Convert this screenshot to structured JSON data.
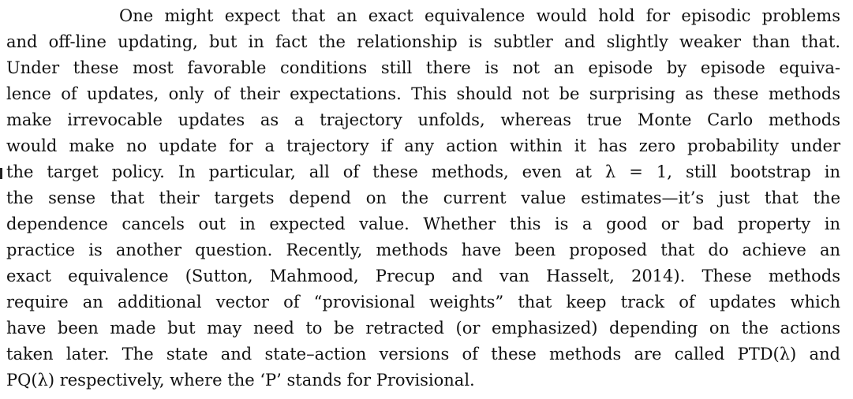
{
  "paragraph": {
    "lines": [
      "One might expect that an exact equivalence would hold for episodic problems",
      "and off-line updating, but in fact the relationship is subtler and slightly weaker than that.",
      "Under these most favorable conditions still there is not an episode by episode equiva-",
      "lence of updates, only of their expectations. This should not be surprising as these methods",
      "make irrevocable updates as a trajectory unfolds, whereas true Monte Carlo methods",
      "would make no update for a trajectory if any action within it has zero probability under",
      "the target policy. In particular, all of these methods, even at λ = 1, still bootstrap in",
      "the sense that their targets depend on the current value estimates—it’s just that the",
      "dependence cancels out in expected value. Whether this is a good or bad property in",
      "practice is another question. Recently, methods have been proposed that do achieve an",
      "exact equivalence (Sutton, Mahmood, Precup and van Hasselt, 2014). These methods",
      "require an additional vector of “provisional weights” that keep track of updates which",
      "have been made but may need to be retracted (or emphasized) depending on the actions",
      "taken later. The state and state–action versions of these methods are called PTD(λ) and",
      "PQ(λ) respectively, where the ‘P’ stands for Provisional."
    ]
  }
}
